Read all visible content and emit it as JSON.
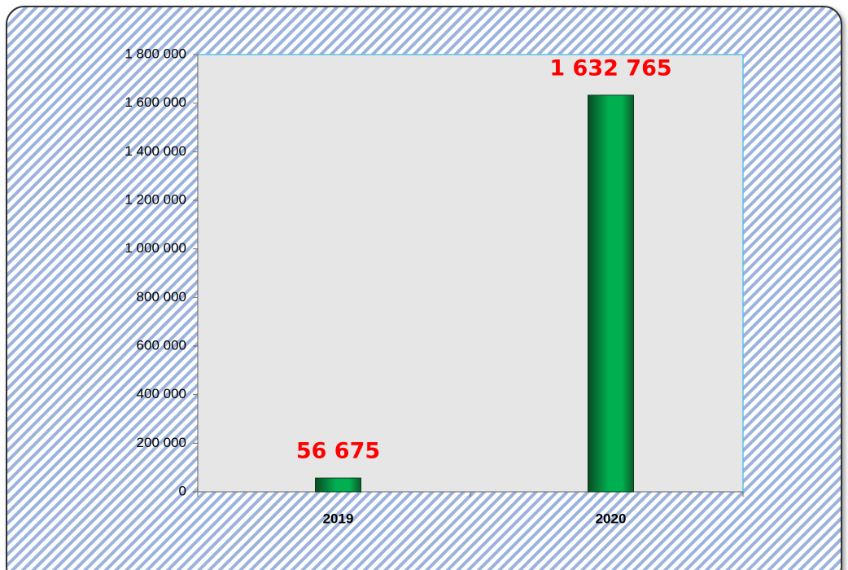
{
  "chart_data": {
    "type": "bar",
    "categories": [
      "2019",
      "2020"
    ],
    "values": [
      56675,
      1632765
    ],
    "value_labels": [
      "56 675",
      "1 632 765"
    ],
    "color": "#00b050",
    "ylim": [
      0,
      1800000
    ],
    "yticks": [
      0,
      {
        "value": 200000,
        "label": "200 000"
      },
      {
        "value": 400000,
        "label": "400 000"
      },
      {
        "value": 600000,
        "label": "600 000"
      },
      {
        "value": 800000,
        "label": "800 000"
      },
      {
        "value": 1000000,
        "label": "1 000 000"
      },
      {
        "value": 1200000,
        "label": "1 200 000"
      },
      {
        "value": 1400000,
        "label": "1 400 000"
      },
      {
        "value": 1600000,
        "label": "1 600 000"
      },
      {
        "value": 1800000,
        "label": "1 800 000"
      }
    ],
    "grid": false
  }
}
